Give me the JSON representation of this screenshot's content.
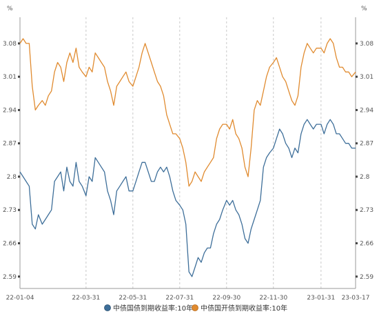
{
  "chart_data": {
    "type": "line",
    "unit_left": "%",
    "unit_right": "%",
    "y_ticks": [
      "3.08",
      "3.01",
      "2.94",
      "2.87",
      "2.8",
      "2.73",
      "2.66",
      "2.59"
    ],
    "y_tick_values": [
      3.08,
      3.01,
      2.94,
      2.87,
      2.8,
      2.73,
      2.66,
      2.59
    ],
    "ylim": [
      2.565,
      3.135
    ],
    "x_ticks": [
      "22-01-04",
      "22-03-31",
      "22-05-31",
      "22-07-31",
      "22-09-30",
      "22-11-30",
      "23-01-31",
      "23-03-17"
    ],
    "x_tick_values": [
      "2022-01-04",
      "2022-03-31",
      "2022-05-31",
      "2022-07-31",
      "2022-09-30",
      "2022-11-30",
      "2023-01-31",
      "2023-03-17"
    ],
    "xlim": [
      "2022-01-04",
      "2023-03-17"
    ],
    "grid": "vertical dashed",
    "legend_position": "bottom",
    "series": [
      {
        "name": "中债国债到期收益率:10年",
        "color": "#3d6e99",
        "points": [
          [
            "2022-01-04",
            2.81
          ],
          [
            "2022-01-08",
            2.8
          ],
          [
            "2022-01-12",
            2.79
          ],
          [
            "2022-01-16",
            2.78
          ],
          [
            "2022-01-20",
            2.7
          ],
          [
            "2022-01-24",
            2.69
          ],
          [
            "2022-01-28",
            2.72
          ],
          [
            "2022-02-02",
            2.7
          ],
          [
            "2022-02-06",
            2.71
          ],
          [
            "2022-02-10",
            2.72
          ],
          [
            "2022-02-14",
            2.73
          ],
          [
            "2022-02-18",
            2.79
          ],
          [
            "2022-02-22",
            2.8
          ],
          [
            "2022-02-26",
            2.81
          ],
          [
            "2022-03-02",
            2.77
          ],
          [
            "2022-03-06",
            2.82
          ],
          [
            "2022-03-10",
            2.79
          ],
          [
            "2022-03-14",
            2.78
          ],
          [
            "2022-03-18",
            2.83
          ],
          [
            "2022-03-22",
            2.79
          ],
          [
            "2022-03-26",
            2.78
          ],
          [
            "2022-03-31",
            2.76
          ],
          [
            "2022-04-04",
            2.8
          ],
          [
            "2022-04-08",
            2.79
          ],
          [
            "2022-04-12",
            2.84
          ],
          [
            "2022-04-16",
            2.83
          ],
          [
            "2022-04-20",
            2.82
          ],
          [
            "2022-04-24",
            2.81
          ],
          [
            "2022-04-28",
            2.77
          ],
          [
            "2022-05-02",
            2.75
          ],
          [
            "2022-05-06",
            2.72
          ],
          [
            "2022-05-10",
            2.77
          ],
          [
            "2022-05-14",
            2.78
          ],
          [
            "2022-05-18",
            2.79
          ],
          [
            "2022-05-22",
            2.8
          ],
          [
            "2022-05-26",
            2.77
          ],
          [
            "2022-05-31",
            2.77
          ],
          [
            "2022-06-04",
            2.79
          ],
          [
            "2022-06-08",
            2.81
          ],
          [
            "2022-06-12",
            2.83
          ],
          [
            "2022-06-16",
            2.83
          ],
          [
            "2022-06-20",
            2.81
          ],
          [
            "2022-06-24",
            2.79
          ],
          [
            "2022-06-28",
            2.79
          ],
          [
            "2022-07-02",
            2.81
          ],
          [
            "2022-07-06",
            2.82
          ],
          [
            "2022-07-10",
            2.81
          ],
          [
            "2022-07-14",
            2.82
          ],
          [
            "2022-07-18",
            2.8
          ],
          [
            "2022-07-22",
            2.77
          ],
          [
            "2022-07-26",
            2.75
          ],
          [
            "2022-07-31",
            2.74
          ],
          [
            "2022-08-04",
            2.73
          ],
          [
            "2022-08-08",
            2.7
          ],
          [
            "2022-08-12",
            2.6
          ],
          [
            "2022-08-16",
            2.59
          ],
          [
            "2022-08-20",
            2.61
          ],
          [
            "2022-08-24",
            2.63
          ],
          [
            "2022-08-28",
            2.62
          ],
          [
            "2022-09-01",
            2.64
          ],
          [
            "2022-09-05",
            2.65
          ],
          [
            "2022-09-09",
            2.65
          ],
          [
            "2022-09-13",
            2.68
          ],
          [
            "2022-09-17",
            2.7
          ],
          [
            "2022-09-21",
            2.71
          ],
          [
            "2022-09-25",
            2.73
          ],
          [
            "2022-09-30",
            2.75
          ],
          [
            "2022-10-04",
            2.74
          ],
          [
            "2022-10-08",
            2.75
          ],
          [
            "2022-10-12",
            2.73
          ],
          [
            "2022-10-16",
            2.72
          ],
          [
            "2022-10-20",
            2.7
          ],
          [
            "2022-10-24",
            2.67
          ],
          [
            "2022-10-28",
            2.66
          ],
          [
            "2022-11-01",
            2.69
          ],
          [
            "2022-11-05",
            2.71
          ],
          [
            "2022-11-09",
            2.73
          ],
          [
            "2022-11-13",
            2.75
          ],
          [
            "2022-11-17",
            2.82
          ],
          [
            "2022-11-21",
            2.84
          ],
          [
            "2022-11-25",
            2.85
          ],
          [
            "2022-11-30",
            2.86
          ],
          [
            "2022-12-04",
            2.88
          ],
          [
            "2022-12-08",
            2.9
          ],
          [
            "2022-12-12",
            2.89
          ],
          [
            "2022-12-16",
            2.87
          ],
          [
            "2022-12-20",
            2.86
          ],
          [
            "2022-12-24",
            2.84
          ],
          [
            "2022-12-28",
            2.86
          ],
          [
            "2023-01-01",
            2.85
          ],
          [
            "2023-01-05",
            2.89
          ],
          [
            "2023-01-09",
            2.91
          ],
          [
            "2023-01-13",
            2.92
          ],
          [
            "2023-01-17",
            2.91
          ],
          [
            "2023-01-21",
            2.9
          ],
          [
            "2023-01-25",
            2.91
          ],
          [
            "2023-01-31",
            2.91
          ],
          [
            "2023-02-04",
            2.89
          ],
          [
            "2023-02-08",
            2.91
          ],
          [
            "2023-02-12",
            2.92
          ],
          [
            "2023-02-16",
            2.91
          ],
          [
            "2023-02-20",
            2.89
          ],
          [
            "2023-02-24",
            2.89
          ],
          [
            "2023-02-28",
            2.88
          ],
          [
            "2023-03-04",
            2.87
          ],
          [
            "2023-03-08",
            2.87
          ],
          [
            "2023-03-12",
            2.86
          ],
          [
            "2023-03-17",
            2.86
          ]
        ]
      },
      {
        "name": "中债国开债到期收益率:10年",
        "color": "#e08a2e",
        "points": [
          [
            "2022-01-04",
            3.08
          ],
          [
            "2022-01-08",
            3.09
          ],
          [
            "2022-01-12",
            3.08
          ],
          [
            "2022-01-16",
            3.08
          ],
          [
            "2022-01-20",
            2.99
          ],
          [
            "2022-01-24",
            2.94
          ],
          [
            "2022-01-28",
            2.95
          ],
          [
            "2022-02-02",
            2.96
          ],
          [
            "2022-02-06",
            2.95
          ],
          [
            "2022-02-10",
            2.97
          ],
          [
            "2022-02-14",
            2.98
          ],
          [
            "2022-02-18",
            3.02
          ],
          [
            "2022-02-22",
            3.04
          ],
          [
            "2022-02-26",
            3.03
          ],
          [
            "2022-03-02",
            3.0
          ],
          [
            "2022-03-06",
            3.04
          ],
          [
            "2022-03-10",
            3.06
          ],
          [
            "2022-03-14",
            3.04
          ],
          [
            "2022-03-18",
            3.07
          ],
          [
            "2022-03-22",
            3.03
          ],
          [
            "2022-03-26",
            3.02
          ],
          [
            "2022-03-31",
            3.01
          ],
          [
            "2022-04-04",
            3.03
          ],
          [
            "2022-04-08",
            3.02
          ],
          [
            "2022-04-12",
            3.06
          ],
          [
            "2022-04-16",
            3.05
          ],
          [
            "2022-04-20",
            3.04
          ],
          [
            "2022-04-24",
            3.03
          ],
          [
            "2022-04-28",
            3.0
          ],
          [
            "2022-05-02",
            2.98
          ],
          [
            "2022-05-06",
            2.95
          ],
          [
            "2022-05-10",
            2.99
          ],
          [
            "2022-05-14",
            3.0
          ],
          [
            "2022-05-18",
            3.01
          ],
          [
            "2022-05-22",
            3.02
          ],
          [
            "2022-05-26",
            3.0
          ],
          [
            "2022-05-31",
            2.99
          ],
          [
            "2022-06-04",
            3.01
          ],
          [
            "2022-06-08",
            3.03
          ],
          [
            "2022-06-12",
            3.06
          ],
          [
            "2022-06-16",
            3.08
          ],
          [
            "2022-06-20",
            3.06
          ],
          [
            "2022-06-24",
            3.04
          ],
          [
            "2022-06-28",
            3.02
          ],
          [
            "2022-07-02",
            3.0
          ],
          [
            "2022-07-06",
            2.99
          ],
          [
            "2022-07-10",
            2.97
          ],
          [
            "2022-07-14",
            2.93
          ],
          [
            "2022-07-18",
            2.91
          ],
          [
            "2022-07-22",
            2.89
          ],
          [
            "2022-07-26",
            2.89
          ],
          [
            "2022-07-31",
            2.88
          ],
          [
            "2022-08-04",
            2.86
          ],
          [
            "2022-08-08",
            2.83
          ],
          [
            "2022-08-12",
            2.78
          ],
          [
            "2022-08-16",
            2.79
          ],
          [
            "2022-08-20",
            2.81
          ],
          [
            "2022-08-24",
            2.8
          ],
          [
            "2022-08-28",
            2.79
          ],
          [
            "2022-09-01",
            2.81
          ],
          [
            "2022-09-05",
            2.82
          ],
          [
            "2022-09-09",
            2.83
          ],
          [
            "2022-09-13",
            2.84
          ],
          [
            "2022-09-17",
            2.88
          ],
          [
            "2022-09-21",
            2.9
          ],
          [
            "2022-09-25",
            2.91
          ],
          [
            "2022-09-30",
            2.91
          ],
          [
            "2022-10-04",
            2.9
          ],
          [
            "2022-10-08",
            2.92
          ],
          [
            "2022-10-12",
            2.89
          ],
          [
            "2022-10-16",
            2.88
          ],
          [
            "2022-10-20",
            2.86
          ],
          [
            "2022-10-24",
            2.82
          ],
          [
            "2022-10-28",
            2.8
          ],
          [
            "2022-11-01",
            2.86
          ],
          [
            "2022-11-05",
            2.94
          ],
          [
            "2022-11-09",
            2.96
          ],
          [
            "2022-11-13",
            2.95
          ],
          [
            "2022-11-17",
            2.98
          ],
          [
            "2022-11-21",
            3.01
          ],
          [
            "2022-11-25",
            3.03
          ],
          [
            "2022-11-30",
            3.04
          ],
          [
            "2022-12-04",
            3.05
          ],
          [
            "2022-12-08",
            3.03
          ],
          [
            "2022-12-12",
            3.01
          ],
          [
            "2022-12-16",
            3.0
          ],
          [
            "2022-12-20",
            2.98
          ],
          [
            "2022-12-24",
            2.96
          ],
          [
            "2022-12-28",
            2.95
          ],
          [
            "2023-01-01",
            2.97
          ],
          [
            "2023-01-05",
            3.03
          ],
          [
            "2023-01-09",
            3.06
          ],
          [
            "2023-01-13",
            3.08
          ],
          [
            "2023-01-17",
            3.07
          ],
          [
            "2023-01-21",
            3.06
          ],
          [
            "2023-01-25",
            3.07
          ],
          [
            "2023-01-31",
            3.07
          ],
          [
            "2023-02-04",
            3.06
          ],
          [
            "2023-02-08",
            3.08
          ],
          [
            "2023-02-12",
            3.09
          ],
          [
            "2023-02-16",
            3.08
          ],
          [
            "2023-02-20",
            3.05
          ],
          [
            "2023-02-24",
            3.03
          ],
          [
            "2023-02-28",
            3.03
          ],
          [
            "2023-03-04",
            3.02
          ],
          [
            "2023-03-08",
            3.02
          ],
          [
            "2023-03-12",
            3.01
          ],
          [
            "2023-03-17",
            3.02
          ]
        ]
      }
    ]
  }
}
